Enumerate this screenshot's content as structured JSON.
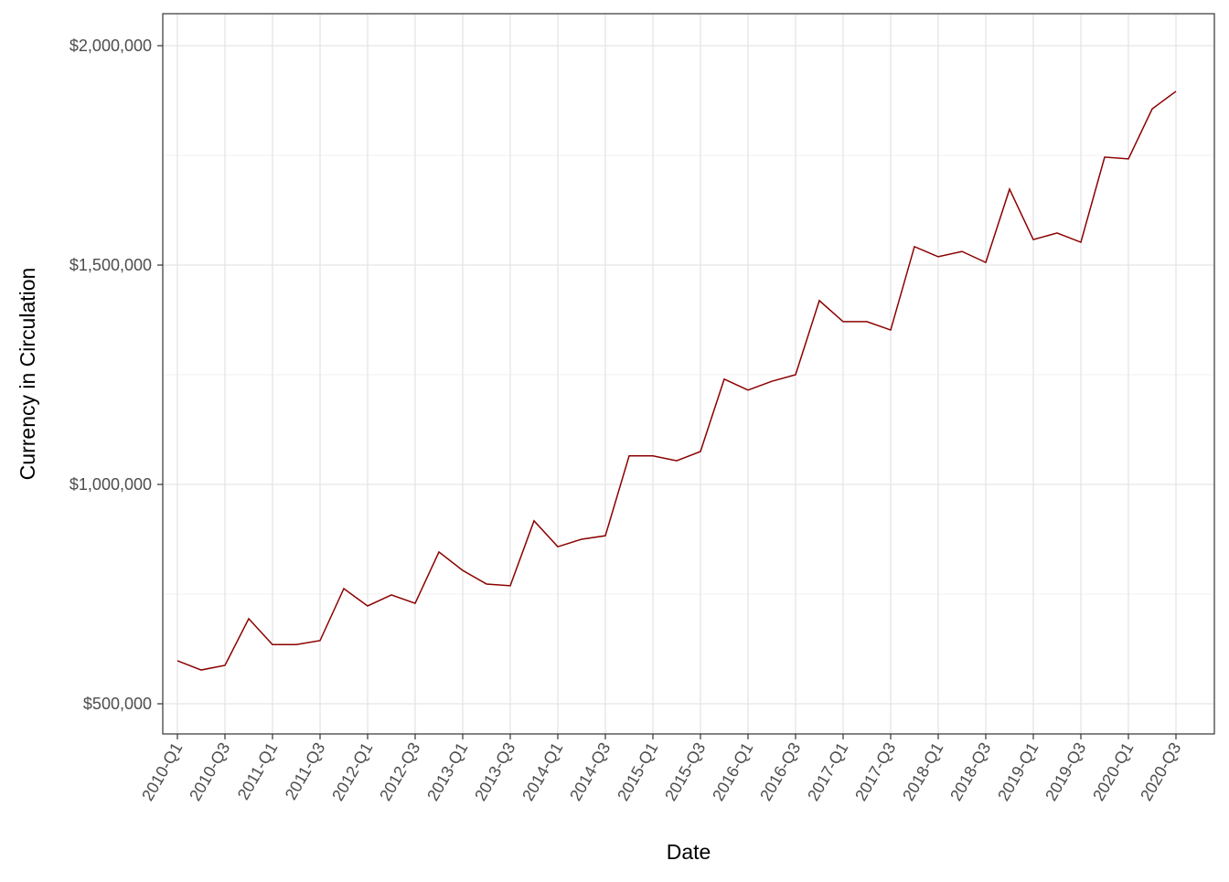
{
  "chart_data": {
    "type": "line",
    "x_label": "Date",
    "y_label": "Currency in Circulation",
    "categories": [
      "2010-Q1",
      null,
      "2010-Q3",
      null,
      "2011-Q1",
      null,
      "2011-Q3",
      null,
      "2012-Q1",
      null,
      "2012-Q3",
      null,
      "2013-Q1",
      null,
      "2013-Q3",
      null,
      "2014-Q1",
      null,
      "2014-Q3",
      null,
      "2015-Q1",
      null,
      "2015-Q3",
      null,
      "2016-Q1",
      null,
      "2016-Q3",
      null,
      "2017-Q1",
      null,
      "2017-Q3",
      null,
      "2018-Q1",
      null,
      "2018-Q3",
      null,
      "2019-Q1",
      null,
      "2019-Q3",
      null,
      "2020-Q1",
      null,
      "2020-Q3"
    ],
    "series": [
      {
        "color": "#8b0000",
        "values": [
          598000,
          577000,
          587500,
          694000,
          635000,
          635000,
          644000,
          762500,
          723000,
          748000,
          729000,
          846000,
          804000,
          773000,
          769000,
          917000,
          858000,
          875000,
          883000,
          1065000,
          1065000,
          1054000,
          1075000,
          1240000,
          1215000,
          1235000,
          1250000,
          1419000,
          1371000,
          1371000,
          1352000,
          1542000,
          1519000,
          1531000,
          1506000,
          1673000,
          1558000,
          1573000,
          1552000,
          1746000,
          1742000,
          1856000,
          1896000
        ]
      }
    ],
    "ylim": [
      431250,
      2072917
    ],
    "yticks": [
      {
        "value": 500000,
        "label": "$500,000"
      },
      {
        "value": 1000000,
        "label": "$1,000,000"
      },
      {
        "value": 1500000,
        "label": "$1,500,000"
      },
      {
        "value": 2000000,
        "label": "$2,000,000"
      }
    ],
    "yminor": [
      750000,
      1250000,
      1750000
    ],
    "grid": true
  }
}
